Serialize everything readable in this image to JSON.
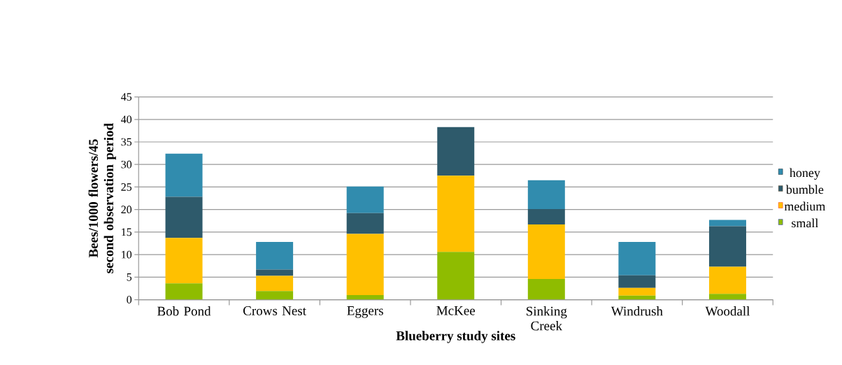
{
  "chart_data": {
    "type": "bar",
    "stacked": true,
    "xlabel": "Blueberry study sites",
    "ylabel": "Bees/1000 flowers/45 second observation period",
    "categories": [
      "Bob Pond",
      "Crows Nest",
      "Eggers",
      "McKee",
      "Sinking Creek",
      "Windrush",
      "Woodall"
    ],
    "series": [
      {
        "name": "small",
        "color": "#8fbc00",
        "values": [
          3.6,
          1.9,
          1.0,
          10.6,
          4.6,
          0.9,
          1.3
        ]
      },
      {
        "name": "medium",
        "color": "#ffc000",
        "values": [
          10.1,
          3.4,
          13.6,
          16.9,
          12.1,
          1.7,
          6.0
        ]
      },
      {
        "name": "bumble",
        "color": "#2e5a6b",
        "values": [
          9.1,
          1.4,
          4.6,
          10.8,
          3.4,
          2.8,
          9.0
        ]
      },
      {
        "name": "honey",
        "color": "#318cae",
        "values": [
          9.6,
          6.1,
          5.9,
          0,
          6.4,
          7.4,
          1.4
        ]
      }
    ],
    "ylim": [
      0,
      45
    ],
    "yticks": [
      0,
      5,
      10,
      15,
      20,
      25,
      30,
      35,
      40,
      45
    ],
    "grid": "y",
    "legend": "right"
  }
}
